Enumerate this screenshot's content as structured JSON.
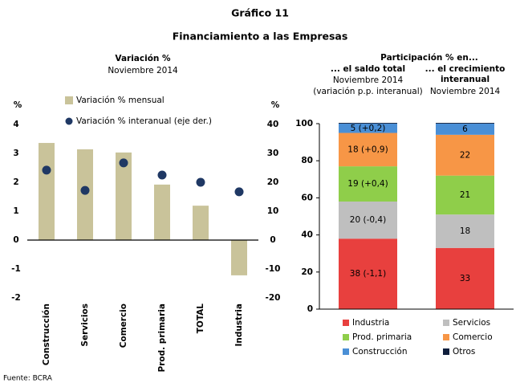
{
  "header": {
    "title": "Gráfico 11",
    "subtitle": "Financiamiento a las Empresas"
  },
  "source": "Fuente: BCRA",
  "chart_data": [
    {
      "type": "combo",
      "title": "Variación %",
      "subtitle": "Noviembre 2014",
      "ylabel": "%",
      "y2label": "%",
      "categories": [
        "Construcción",
        "Servicios",
        "Comercio",
        "Prod. primaria",
        "TOTAL",
        "Industria"
      ],
      "series": [
        {
          "name": "Variación % mensual",
          "type": "bar",
          "color": "#c9c39a",
          "values": [
            3.36,
            3.14,
            3.03,
            1.92,
            1.19,
            -1.22
          ]
        },
        {
          "name": "Variación % interanual (eje der.)",
          "type": "scatter",
          "axis": "y2",
          "color": "#1f3864",
          "values": [
            24.2,
            17.2,
            26.7,
            22.5,
            20,
            16.7
          ]
        }
      ],
      "ylim": [
        -2,
        4
      ],
      "yticks": [
        -2,
        -1,
        0,
        1,
        2,
        3,
        4
      ],
      "y2lim": [
        -20,
        40
      ],
      "y2ticks": [
        -20,
        -10,
        0,
        10,
        20,
        30,
        40
      ]
    },
    {
      "type": "stacked_bar",
      "title": "Participación % en...",
      "column_headers": [
        {
          "title": "... el saldo total",
          "lines": [
            "Noviembre 2014",
            "(variación p.p. interanual)"
          ]
        },
        {
          "title": "... el crecimiento interanual",
          "lines": [
            "Noviembre 2014"
          ]
        }
      ],
      "series": [
        {
          "name": "Industria",
          "color": "#e8403e",
          "label_color": "#ffffff",
          "values": [
            38,
            33
          ],
          "value_labels": [
            "38 (-1,1)",
            "33"
          ]
        },
        {
          "name": "Servicios",
          "color": "#bfbfbf",
          "label_color": "#000000",
          "values": [
            20,
            18
          ],
          "value_labels": [
            "20 (-0,4)",
            "18"
          ]
        },
        {
          "name": "Prod. primaria",
          "color": "#8fce4a",
          "label_color": "#000000",
          "values": [
            19,
            21
          ],
          "value_labels": [
            "19 (+0,4)",
            "21"
          ]
        },
        {
          "name": "Comercio",
          "color": "#f79646",
          "label_color": "#000000",
          "values": [
            18,
            22
          ],
          "value_labels": [
            "18 (+0,9)",
            "22"
          ]
        },
        {
          "name": "Construcción",
          "color": "#4a8fd6",
          "label_color": "#ffffff",
          "values": [
            5,
            6
          ],
          "value_labels": [
            "5 (+0,2)",
            "6"
          ]
        },
        {
          "name": "Otros",
          "color": "#0f1e3c",
          "label_color": "#ffffff",
          "values": [
            0.4,
            0.4
          ],
          "value_labels": [
            null,
            null
          ]
        }
      ],
      "ylim": [
        0,
        100
      ],
      "yticks": [
        0,
        20,
        40,
        60,
        80,
        100
      ]
    }
  ]
}
